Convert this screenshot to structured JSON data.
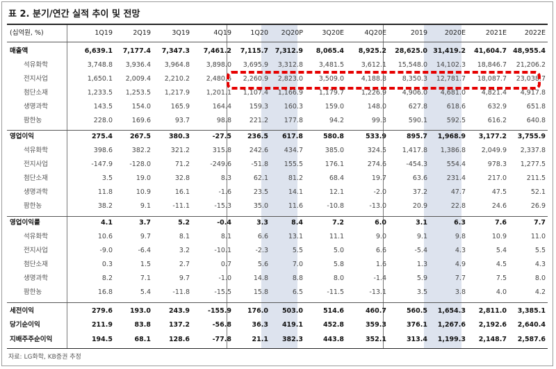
{
  "title": "표 2. 분기/연간 실적 추이 및 전망",
  "unit_label": "(십억원, %)",
  "columns": [
    "1Q19",
    "2Q19",
    "3Q19",
    "4Q19",
    "1Q20",
    "2Q20P",
    "3Q20E",
    "4Q20E",
    "2019",
    "2020E",
    "2021E",
    "2022E"
  ],
  "highlight_columns": [
    "2Q20P",
    "2020E"
  ],
  "highlight_color": "#dde3ee",
  "callout_color": "#e60000",
  "callout_row": "전지사업",
  "rows": [
    {
      "label": "매출액",
      "main": true,
      "values": [
        "6,639.1",
        "7,177.4",
        "7,347.3",
        "7,461.2",
        "7,115.7",
        "7,312.9",
        "8,065.4",
        "8,925.2",
        "28,625.0",
        "31,419.2",
        "41,604.7",
        "48,955.4"
      ]
    },
    {
      "label": "석유화학",
      "main": false,
      "values": [
        "3,748.8",
        "3,936.4",
        "3,964.8",
        "3,898.0",
        "3,695.9",
        "3,312.8",
        "3,481.5",
        "3,612.1",
        "15,548.0",
        "14,102.3",
        "18,846.7",
        "21,206.2"
      ]
    },
    {
      "label": "전지사업",
      "main": false,
      "values": [
        "1,650.1",
        "2,009.4",
        "2,210.2",
        "2,480.6",
        "2,260.9",
        "2,823.0",
        "3,509.0",
        "4,188.8",
        "8,350.3",
        "12,781.7",
        "18,087.7",
        "23,038.7"
      ]
    },
    {
      "label": "첨단소재",
      "main": false,
      "values": [
        "1,233.5",
        "1,253.5",
        "1,217.9",
        "1,201.1",
        "1,107.4",
        "1,166.9",
        "1,179.7",
        "1,226.9",
        "4,906.0",
        "4,681.0",
        "4,821.4",
        "4,917.8"
      ]
    },
    {
      "label": "생명과학",
      "main": false,
      "values": [
        "143.5",
        "154.0",
        "165.9",
        "164.4",
        "159.3",
        "160.3",
        "159.0",
        "148.0",
        "627.8",
        "618.6",
        "632.9",
        "651.8"
      ]
    },
    {
      "label": "팜한농",
      "main": false,
      "values": [
        "228.0",
        "169.6",
        "93.7",
        "98.8",
        "221.2",
        "177.8",
        "94.2",
        "99.3",
        "590.1",
        "592.5",
        "616.2",
        "640.8"
      ]
    },
    {
      "label": "영업이익",
      "main": true,
      "values": [
        "275.4",
        "267.5",
        "380.3",
        "-27.5",
        "236.5",
        "617.8",
        "580.8",
        "533.9",
        "895.7",
        "1,968.9",
        "3,177.2",
        "3,755.9"
      ]
    },
    {
      "label": "석유화학",
      "main": false,
      "values": [
        "398.6",
        "382.2",
        "321.2",
        "315.8",
        "242.6",
        "434.7",
        "385.0",
        "324.5",
        "1,417.8",
        "1,386.8",
        "2,049.9",
        "2,337.8"
      ]
    },
    {
      "label": "전지사업",
      "main": false,
      "values": [
        "-147.9",
        "-128.0",
        "71.2",
        "-249.6",
        "-51.8",
        "155.5",
        "176.1",
        "274.6",
        "-454.3",
        "554.4",
        "978.3",
        "1,277.5"
      ]
    },
    {
      "label": "첨단소재",
      "main": false,
      "values": [
        "3.5",
        "19.0",
        "32.8",
        "8.3",
        "62.1",
        "81.2",
        "68.4",
        "19.7",
        "63.6",
        "231.4",
        "217.0",
        "211.5"
      ]
    },
    {
      "label": "생명과학",
      "main": false,
      "values": [
        "11.8",
        "10.9",
        "16.1",
        "-1.6",
        "23.5",
        "14.1",
        "12.1",
        "-2.0",
        "37.2",
        "47.7",
        "47.5",
        "52.1"
      ]
    },
    {
      "label": "팜한농",
      "main": false,
      "values": [
        "38.2",
        "9.1",
        "-11.1",
        "-15.3",
        "35.0",
        "11.6",
        "-10.8",
        "-13.0",
        "20.9",
        "22.8",
        "24.6",
        "26.9"
      ]
    },
    {
      "label": "영업이익률",
      "main": true,
      "values": [
        "4.1",
        "3.7",
        "5.2",
        "-0.4",
        "3.3",
        "8.4",
        "7.2",
        "6.0",
        "3.1",
        "6.3",
        "7.6",
        "7.7"
      ]
    },
    {
      "label": "석유화학",
      "main": false,
      "values": [
        "10.6",
        "9.7",
        "8.1",
        "8.1",
        "6.6",
        "13.1",
        "11.1",
        "9.0",
        "9.1",
        "9.8",
        "10.9",
        "11.0"
      ]
    },
    {
      "label": "전지사업",
      "main": false,
      "values": [
        "-9.0",
        "-6.4",
        "3.2",
        "-10.1",
        "-2.3",
        "5.5",
        "5.0",
        "6.6",
        "-5.4",
        "4.3",
        "5.4",
        "5.5"
      ]
    },
    {
      "label": "첨단소재",
      "main": false,
      "values": [
        "0.3",
        "1.5",
        "2.7",
        "0.7",
        "5.6",
        "7.0",
        "5.8",
        "1.6",
        "1.3",
        "4.9",
        "4.5",
        "4.3"
      ]
    },
    {
      "label": "생명과학",
      "main": false,
      "values": [
        "8.2",
        "7.1",
        "9.7",
        "-1.0",
        "14.8",
        "8.8",
        "8.0",
        "-1.4",
        "5.9",
        "7.7",
        "7.5",
        "8.0"
      ]
    },
    {
      "label": "팜한농",
      "main": false,
      "values": [
        "16.8",
        "5.4",
        "-11.8",
        "-15.5",
        "15.8",
        "6.5",
        "-11.5",
        "-13.1",
        "3.5",
        "3.8",
        "4.0",
        "4.2"
      ]
    },
    {
      "label": "세전이익",
      "main": true,
      "values": [
        "279.6",
        "193.0",
        "243.9",
        "-155.9",
        "176.0",
        "503.0",
        "514.6",
        "460.7",
        "560.5",
        "1,654.3",
        "2,811.0",
        "3,385.1"
      ]
    },
    {
      "label": "당기순이익",
      "main": true,
      "values": [
        "211.9",
        "83.8",
        "137.2",
        "-56.8",
        "36.3",
        "419.1",
        "452.8",
        "359.3",
        "376.1",
        "1,267.6",
        "2,192.6",
        "2,640.4"
      ]
    },
    {
      "label": "지배주주순이익",
      "main": true,
      "values": [
        "194.5",
        "68.1",
        "128.6",
        "-77.8",
        "21.1",
        "382.3",
        "443.8",
        "352.1",
        "313.4",
        "1,199.3",
        "2,148.7",
        "2,587.6"
      ]
    }
  ],
  "source": "자료: LG화학, KB증권 추정"
}
